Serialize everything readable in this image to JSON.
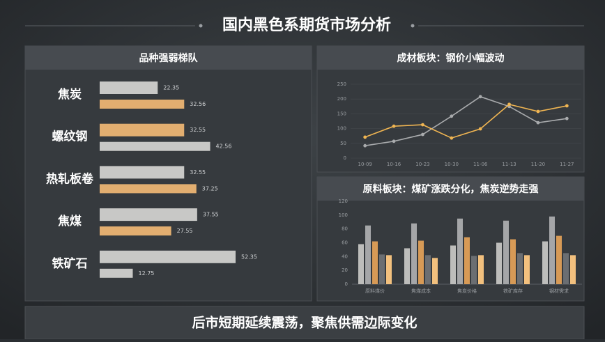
{
  "title": "国内黑色系期货市场分析",
  "footer": "后市短期延续震荡，聚焦供需边际变化",
  "chart_data": [
    {
      "type": "hbar",
      "title": "品种强弱梯队",
      "categories": [
        "焦炭",
        "螺纹钢",
        "热轧板卷",
        "焦煤",
        "铁矿石"
      ],
      "series": [
        {
          "values": [
            22.35,
            32.55,
            32.55,
            37.55,
            52.35
          ],
          "colors": [
            "#c8c8c6",
            "#e2ae70",
            "#c8c8c6",
            "#c8c8c6",
            "#c8c8c6"
          ]
        },
        {
          "values": [
            32.56,
            42.56,
            37.25,
            27.55,
            12.75
          ],
          "colors": [
            "#e2ae70",
            "#c8c8c6",
            "#e2ae70",
            "#e2ae70",
            "#c8c8c6"
          ]
        }
      ]
    },
    {
      "type": "line",
      "title": "成材板块：钢价小幅波动",
      "categories": [
        "10-09",
        "10-16",
        "10-23",
        "10-30",
        "11-06",
        "11-13",
        "11-20",
        "11-27"
      ],
      "series": [
        {
          "color": "#a9abad",
          "values": [
            42,
            57,
            80,
            142,
            208,
            175,
            120,
            134
          ]
        },
        {
          "color": "#f0b552",
          "values": [
            71,
            108,
            113,
            68,
            99,
            182,
            158,
            177
          ]
        }
      ],
      "ylim": [
        0,
        250
      ],
      "yticks": [
        0,
        50,
        100,
        150,
        200,
        250
      ],
      "grid": true
    },
    {
      "type": "bar",
      "title": "原料板块：煤矿涨跌分化，焦炭逆势走强",
      "categories": [
        "原料煤价",
        "焦煤成本",
        "焦炭价格",
        "铁矿库存",
        "钢材需求"
      ],
      "series": [
        {
          "color": "#bdbdbb",
          "values": [
            58,
            52,
            56,
            60,
            62
          ]
        },
        {
          "color": "#a5a6a8",
          "values": [
            85,
            88,
            95,
            92,
            98
          ]
        },
        {
          "color": "#d79a56",
          "values": [
            62,
            63,
            68,
            65,
            70
          ]
        },
        {
          "color": "#6b6e72",
          "values": [
            43,
            42,
            41,
            45,
            45
          ]
        },
        {
          "color": "#f2c07e",
          "values": [
            42,
            38,
            42,
            42,
            42
          ]
        }
      ],
      "ylim": [
        0,
        120
      ],
      "yticks": [
        0,
        20,
        40,
        60,
        80,
        100,
        120
      ],
      "grid": false
    }
  ]
}
